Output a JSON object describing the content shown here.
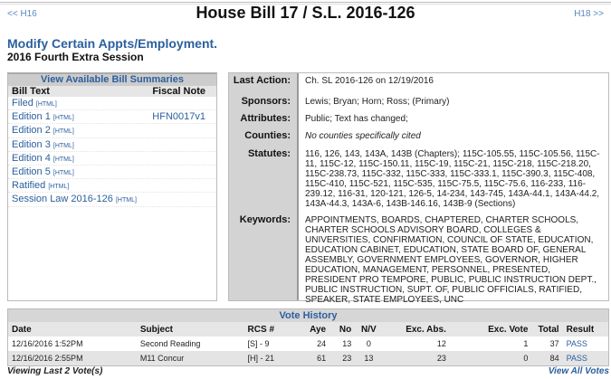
{
  "header": {
    "prev": "<< H16",
    "next": "H18 >>",
    "title": "House Bill 17 / S.L. 2016-126",
    "subtitle": "Modify Certain Appts/Employment.",
    "session": "2016 Fourth Extra Session"
  },
  "bill_text": {
    "heading": "View Available Bill Summaries",
    "col1": "Bill Text",
    "col2": "Fiscal Note",
    "rows": [
      {
        "label": "Filed",
        "tag": "[HTML]",
        "fiscal": ""
      },
      {
        "label": "Edition 1",
        "tag": "[HTML]",
        "fiscal": "HFN0017v1"
      },
      {
        "label": "Edition 2",
        "tag": "[HTML]",
        "fiscal": ""
      },
      {
        "label": "Edition 3",
        "tag": "[HTML]",
        "fiscal": ""
      },
      {
        "label": "Edition 4",
        "tag": "[HTML]",
        "fiscal": ""
      },
      {
        "label": "Edition 5",
        "tag": "[HTML]",
        "fiscal": ""
      },
      {
        "label": "Ratified",
        "tag": "[HTML]",
        "fiscal": ""
      },
      {
        "label": "Session Law 2016-126",
        "tag": "[HTML]",
        "fiscal": ""
      }
    ]
  },
  "details": {
    "last_action": {
      "label": "Last Action:",
      "value": "Ch. SL 2016-126 on 12/19/2016"
    },
    "sponsors": {
      "label": "Sponsors:",
      "value": "Lewis; Bryan; Horn; Ross; (Primary)"
    },
    "attributes": {
      "label": "Attributes:",
      "value": "Public; Text has changed;"
    },
    "counties": {
      "label": "Counties:",
      "value": "No counties specifically cited"
    },
    "statutes": {
      "label": "Statutes:",
      "value": "116, 126, 143, 143A, 143B (Chapters); 115C-105.55, 115C-105.56, 115C-11, 115C-12, 115C-150.11, 115C-19, 115C-21, 115C-218, 115C-218.20, 115C-238.73, 115C-332, 115C-333, 115C-333.1, 115C-390.3, 115C-408, 115C-410, 115C-521, 115C-535, 115C-75.5, 115C-75.6, 116-233, 116-239.12, 116-31, 120-121, 126-5, 14-234, 143-745, 143A-44.1, 143A-44.2, 143A-44.3, 143A-6, 143B-146.16, 143B-9 (Sections)"
    },
    "keywords": {
      "label": "Keywords:",
      "value": "APPOINTMENTS, BOARDS, CHAPTERED, CHARTER SCHOOLS, CHARTER SCHOOLS ADVISORY BOARD, COLLEGES & UNIVERSITIES, CONFIRMATION, COUNCIL OF STATE, EDUCATION, EDUCATION CABINET, EDUCATION, STATE BOARD OF, GENERAL ASSEMBLY, GOVERNMENT EMPLOYEES, GOVERNOR, HIGHER EDUCATION, MANAGEMENT, PERSONNEL, PRESENTED, PRESIDENT PRO TEMPORE, PUBLIC, PUBLIC INSTRUCTION DEPT., PUBLIC INSTRUCTION, SUPT. OF, PUBLIC OFFICIALS, RATIFIED, SPEAKER, STATE EMPLOYEES, UNC"
    }
  },
  "votes": {
    "heading": "Vote History",
    "columns": [
      "Date",
      "Subject",
      "RCS #",
      "Aye",
      "No",
      "N/V",
      "Exc. Abs.",
      "Exc. Vote",
      "Total",
      "Result"
    ],
    "rows": [
      [
        "12/16/2016 1:52PM",
        "Second Reading",
        "[S] - 9",
        "24",
        "13",
        "0",
        "12",
        "1",
        "37",
        "PASS"
      ],
      [
        "12/16/2016 2:55PM",
        "M11 Concur",
        "[H] - 21",
        "61",
        "23",
        "13",
        "23",
        "0",
        "84",
        "PASS"
      ]
    ],
    "footer_left": "Viewing Last 2 Vote(s)",
    "footer_right": "View All Votes"
  }
}
